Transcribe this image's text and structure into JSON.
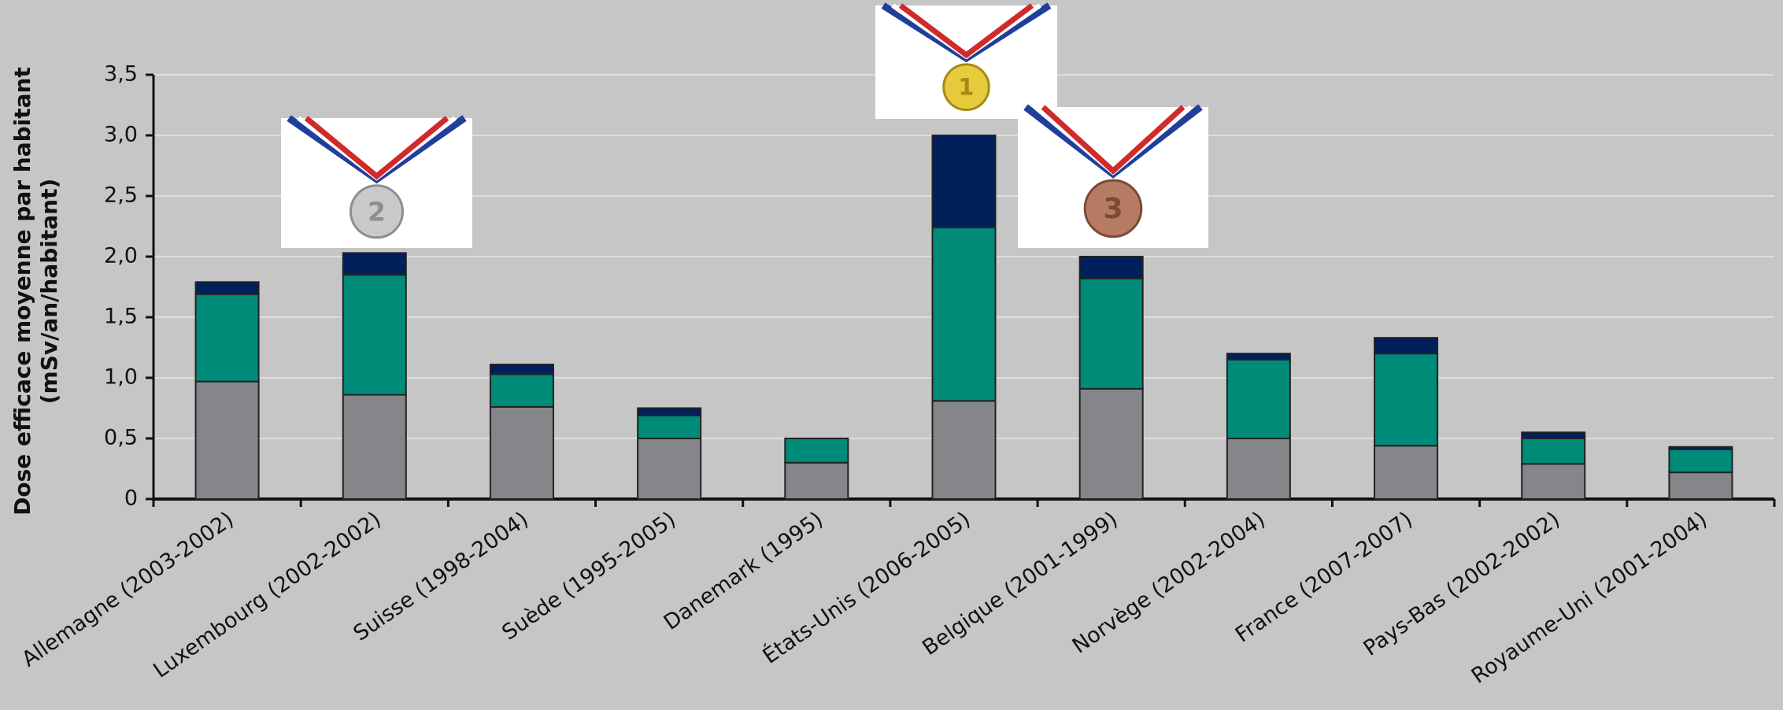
{
  "chart_data": {
    "type": "stacked-bar",
    "y_label_lines": [
      "Dose efficace moyenne par habitant",
      "(mSv/an/habitant)"
    ],
    "categories": [
      "Allemagne (2003-2002)",
      "Luxembourg (2002-2002)",
      "Suisse (1998-2004)",
      "Suède (1995-2005)",
      "Danemark (1995)",
      "États-Unis (2006-2005)",
      "Belgique (2001-1999)",
      "Norvège (2002-2004)",
      "France (2007-2007)",
      "Pays-Bas (2002-2002)",
      "Royaume-Uni (2001-2004)"
    ],
    "series": [
      {
        "color": "#858689",
        "values": [
          0.97,
          0.86,
          0.76,
          0.5,
          0.3,
          0.81,
          0.91,
          0.5,
          0.44,
          0.29,
          0.22
        ]
      },
      {
        "color": "#008b78",
        "values": [
          0.72,
          0.99,
          0.27,
          0.19,
          0.2,
          1.43,
          0.91,
          0.65,
          0.76,
          0.21,
          0.19
        ]
      },
      {
        "color": "#00205b",
        "values": [
          0.1,
          0.18,
          0.08,
          0.06,
          0,
          0.76,
          0.18,
          0.05,
          0.13,
          0.05,
          0.02
        ]
      }
    ],
    "ylim": [
      0,
      3.5
    ],
    "yticks": [
      0,
      {
        "value": 0.5,
        "label": "0,5"
      },
      {
        "value": 1,
        "label": "1,0"
      },
      {
        "value": 1.5,
        "label": "1,5"
      },
      {
        "value": 2,
        "label": "2,0"
      },
      {
        "value": 2.5,
        "label": "2,5"
      },
      {
        "value": 3,
        "label": "3,0"
      },
      {
        "value": 3.5,
        "label": "3,5"
      }
    ],
    "grid": true,
    "medals": [
      "2",
      "1",
      "3"
    ]
  }
}
